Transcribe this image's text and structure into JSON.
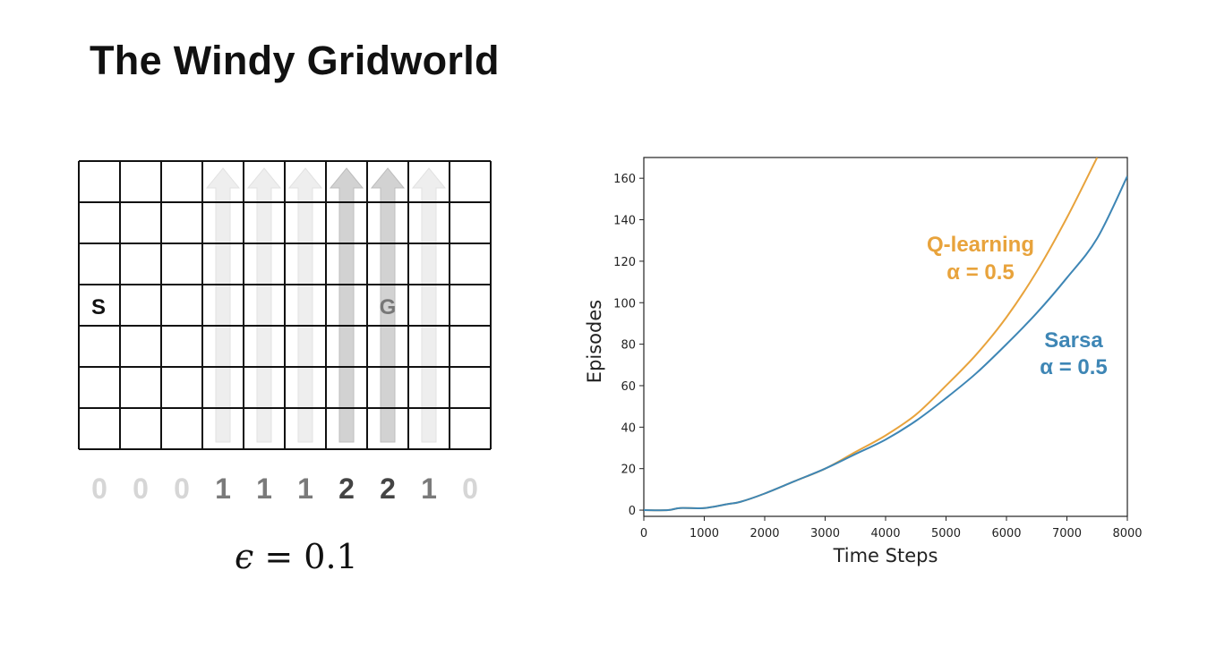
{
  "title": "The Windy Gridworld",
  "gridworld": {
    "columns": 10,
    "rows": 7,
    "start": {
      "label": "S",
      "row": 3,
      "col": 0
    },
    "goal": {
      "label": "G",
      "row": 3,
      "col": 7
    },
    "wind": [
      0,
      0,
      0,
      1,
      1,
      1,
      2,
      2,
      1,
      0
    ],
    "epsilon_symbol": "ϵ",
    "epsilon_rest": " = 0.1"
  },
  "colors": {
    "q_learning": "#E8A33C",
    "sarsa": "#3E86B5",
    "grid_line": "#111111",
    "wind_strong": "#444444",
    "wind_weak": "#7a7a7a",
    "wind_none": "#d6d6d6"
  },
  "chart_data": {
    "type": "line",
    "xlabel": "Time Steps",
    "ylabel": "Episodes",
    "xlim": [
      0,
      8000
    ],
    "ylim": [
      -3,
      170
    ],
    "xticks": [
      0,
      1000,
      2000,
      3000,
      4000,
      5000,
      6000,
      7000,
      8000
    ],
    "yticks": [
      0,
      20,
      40,
      60,
      80,
      100,
      120,
      140,
      160
    ],
    "grid": false,
    "series": [
      {
        "name": "Q-learning",
        "param": "α = 0.5",
        "x": [
          0,
          400,
          600,
          1000,
          1400,
          1600,
          2000,
          2500,
          3000,
          3500,
          4000,
          4500,
          5000,
          5500,
          6000,
          6500,
          7000,
          7500
        ],
        "values": [
          0,
          0,
          1,
          1,
          3,
          4,
          8,
          14,
          20,
          28,
          36,
          46,
          60,
          75,
          93,
          115,
          141,
          170
        ]
      },
      {
        "name": "Sarsa",
        "param": "α = 0.5",
        "x": [
          0,
          400,
          600,
          1000,
          1400,
          1600,
          2000,
          2500,
          3000,
          3500,
          4000,
          4500,
          5000,
          5500,
          6000,
          6500,
          7000,
          7500,
          8000
        ],
        "values": [
          0,
          0,
          1,
          1,
          3,
          4,
          8,
          14,
          20,
          27,
          34,
          43,
          54,
          66,
          80,
          95,
          112,
          131,
          161
        ]
      }
    ]
  }
}
